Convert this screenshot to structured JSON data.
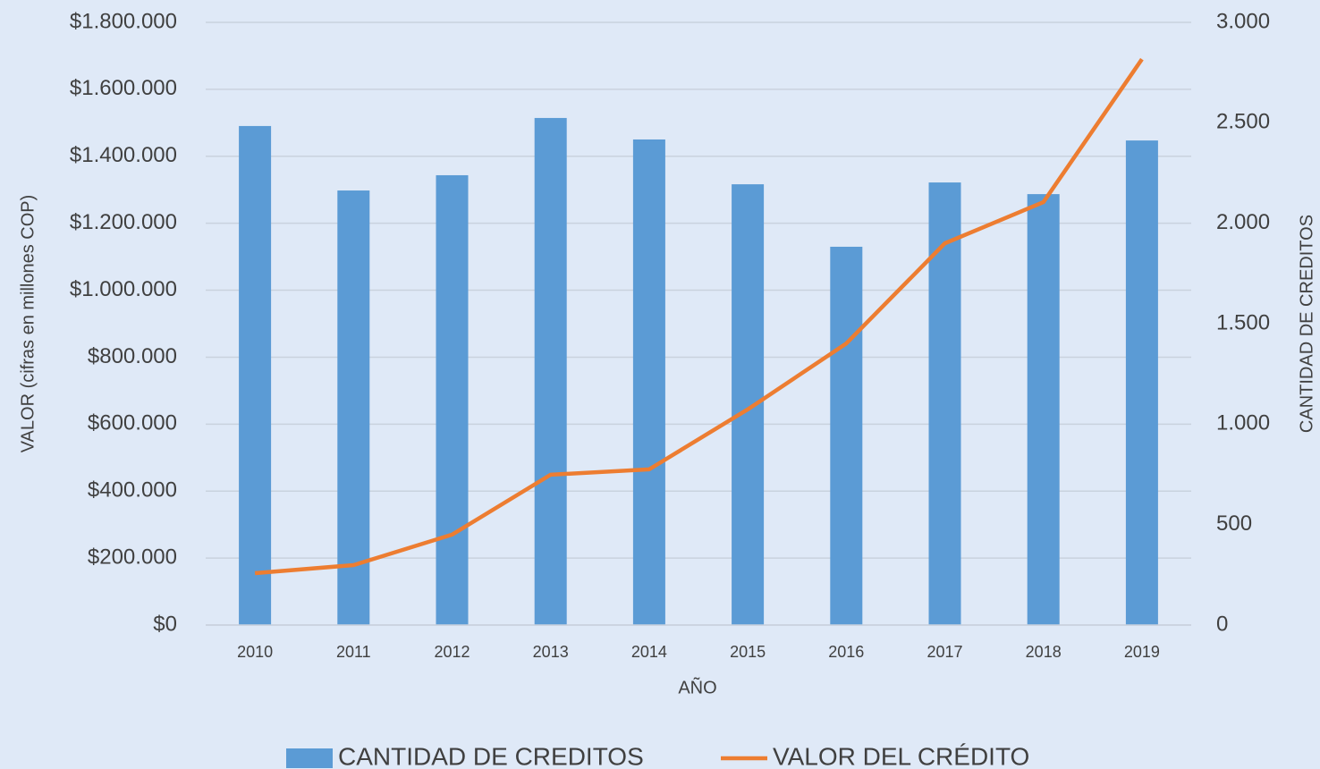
{
  "chart_data": {
    "type": "combo",
    "x_label": "AÑO",
    "y_label": "VALOR (cifras en millones COP)",
    "y2_label": "CANTIDAD DE CREDITOS",
    "categories": [
      "2010",
      "2011",
      "2012",
      "2013",
      "2014",
      "2015",
      "2016",
      "2017",
      "2018",
      "2019"
    ],
    "series": [
      {
        "name": "CANTIDAD DE CREDITOS",
        "type": "bar",
        "axis": "y2",
        "color": "#5b9bd5",
        "values": [
          2484,
          2163,
          2239,
          2524,
          2417,
          2194,
          1883,
          2203,
          2145,
          2412
        ]
      },
      {
        "name": "VALOR DEL CRÉDITO",
        "type": "line",
        "axis": "y",
        "color": "#ed7d31",
        "values": [
          155000,
          179000,
          270000,
          449000,
          465000,
          644000,
          841000,
          1140000,
          1263000,
          1690000
        ]
      }
    ],
    "ylim": [
      0,
      1800000
    ],
    "yticks": [
      {
        "value": 0,
        "label": "$0"
      },
      {
        "value": 200000,
        "label": "$200.000"
      },
      {
        "value": 400000,
        "label": "$400.000"
      },
      {
        "value": 600000,
        "label": "$600.000"
      },
      {
        "value": 800000,
        "label": "$800.000"
      },
      {
        "value": 1000000,
        "label": "$1.000.000"
      },
      {
        "value": 1200000,
        "label": "$1.200.000"
      },
      {
        "value": 1400000,
        "label": "$1.400.000"
      },
      {
        "value": 1600000,
        "label": "$1.600.000"
      },
      {
        "value": 1800000,
        "label": "$1.800.000"
      }
    ],
    "y2lim": [
      0,
      3000
    ],
    "y2ticks": [
      0,
      500,
      {
        "value": 1000,
        "label": "1.000"
      },
      {
        "value": 1500,
        "label": "1.500"
      },
      {
        "value": 2000,
        "label": "2.000"
      },
      {
        "value": 2500,
        "label": "2.500"
      },
      {
        "value": 3000,
        "label": "3.000"
      }
    ],
    "grid": true,
    "legend": "bottom"
  }
}
